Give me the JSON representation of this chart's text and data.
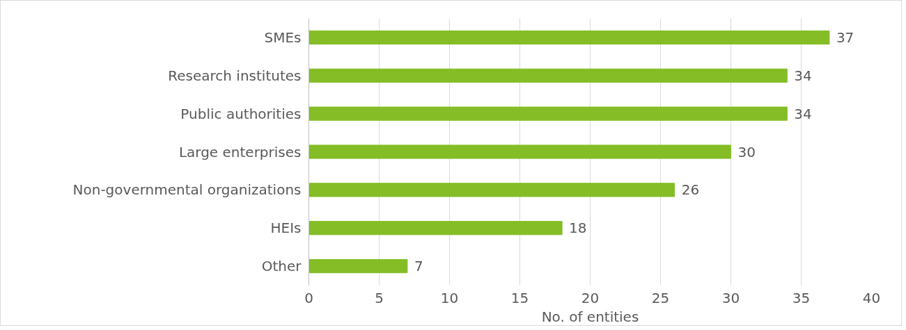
{
  "chart_data": {
    "type": "bar",
    "orientation": "horizontal",
    "xlabel": "No. of entities",
    "categories": [
      "SMEs",
      "Research institutes",
      "Public authorities",
      "Large enterprises",
      "Non-governmental organizations",
      "HEIs",
      "Other"
    ],
    "values": [
      37,
      34,
      34,
      30,
      26,
      18,
      7
    ],
    "color": "#84bd25",
    "xlim": [
      0,
      40
    ],
    "xticks": [
      0,
      5,
      10,
      15,
      20,
      25,
      30,
      35,
      40
    ],
    "grid": "x",
    "data_labels": true
  }
}
